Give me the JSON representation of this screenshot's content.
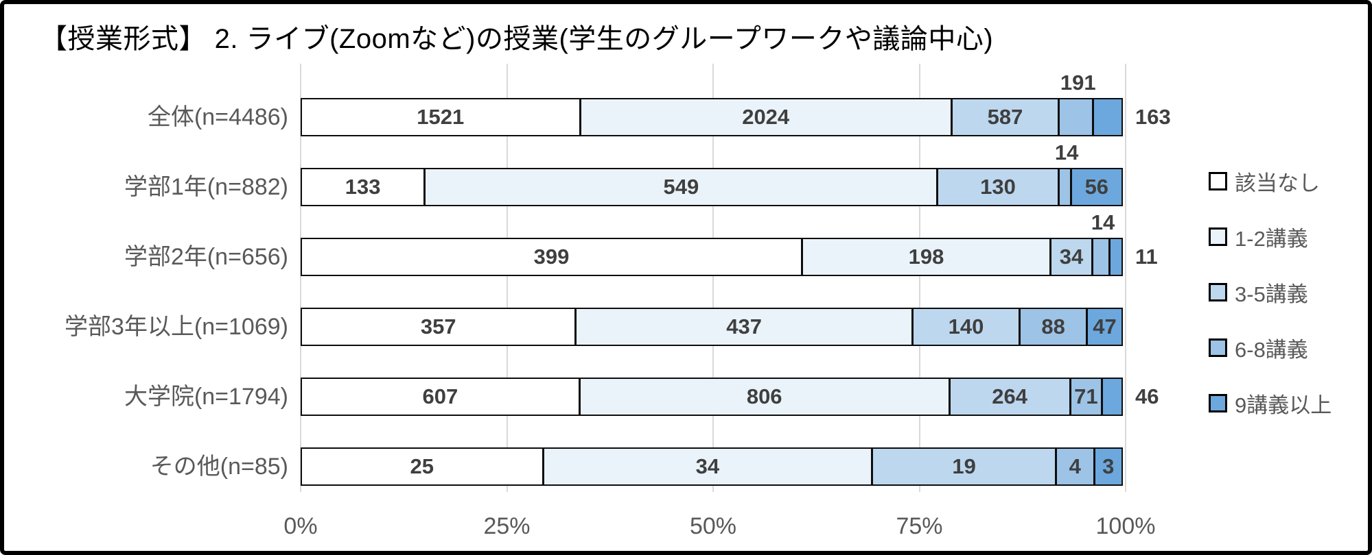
{
  "chart_data": {
    "type": "bar",
    "variant": "horizontal_100pct_stacked",
    "title": "【授業形式】 2. ライブ(Zoomなど)の授業(学生のグループワークや議論中心)",
    "legend": [
      "該当なし",
      "1-2講義",
      "3-5講義",
      "6-8講義",
      "9講義以上"
    ],
    "colors": [
      "#FFFFFF",
      "#EAF3FA",
      "#BDD7EE",
      "#9DC3E6",
      "#6CA8DD"
    ],
    "x_ticks": [
      "0%",
      "25%",
      "50%",
      "75%",
      "100%"
    ],
    "xlim": [
      0,
      100
    ],
    "grid": "vertical",
    "legend_position": "right",
    "rows": [
      {
        "label": "全体(n=4486)",
        "total": 4486,
        "values": [
          1521,
          2024,
          587,
          191,
          163
        ],
        "label_pos": [
          "inside",
          "inside",
          "inside",
          "above",
          "outside"
        ]
      },
      {
        "label": "学部1年(n=882)",
        "total": 882,
        "values": [
          133,
          549,
          130,
          14,
          56
        ],
        "label_pos": [
          "inside",
          "inside",
          "inside",
          "above",
          "inside"
        ]
      },
      {
        "label": "学部2年(n=656)",
        "total": 656,
        "values": [
          399,
          198,
          34,
          14,
          11
        ],
        "label_pos": [
          "inside",
          "inside",
          "inside",
          "above",
          "outside"
        ]
      },
      {
        "label": "学部3年以上(n=1069)",
        "total": 1069,
        "values": [
          357,
          437,
          140,
          88,
          47
        ],
        "label_pos": [
          "inside",
          "inside",
          "inside",
          "inside",
          "inside"
        ]
      },
      {
        "label": "大学院(n=1794)",
        "total": 1794,
        "values": [
          607,
          806,
          264,
          71,
          46
        ],
        "label_pos": [
          "inside",
          "inside",
          "inside",
          "inside",
          "outside"
        ]
      },
      {
        "label": "その他(n=85)",
        "total": 85,
        "values": [
          25,
          34,
          19,
          4,
          3
        ],
        "label_pos": [
          "inside",
          "inside",
          "inside",
          "inside",
          "inside"
        ]
      }
    ]
  }
}
